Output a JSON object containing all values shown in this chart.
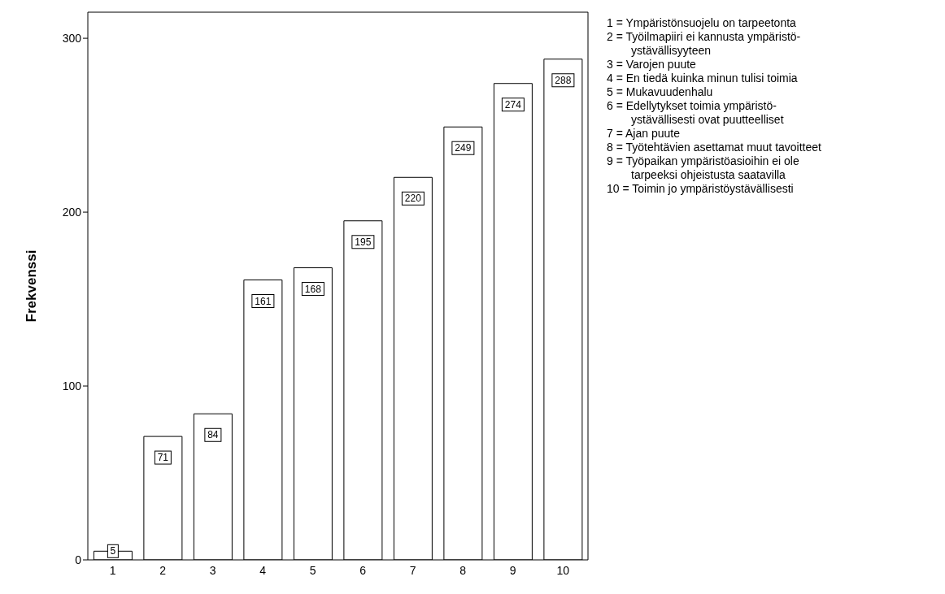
{
  "chart_data": {
    "type": "bar",
    "ylabel": "Frekvenssi",
    "categories": [
      "1",
      "2",
      "3",
      "4",
      "5",
      "6",
      "7",
      "8",
      "9",
      "10"
    ],
    "values": [
      5,
      71,
      84,
      161,
      168,
      195,
      220,
      249,
      274,
      288
    ],
    "color": "#ffffff",
    "ylim": [
      0,
      315
    ],
    "yticks": [
      0,
      100,
      200,
      300
    ],
    "grid": false,
    "data_labels": true,
    "annotations": [
      "1 = Ympäristönsuojelu on tarpeetonta",
      "2 = Työilmapiiri ei kannusta ympäristö-\nystävällisyyteen",
      "3 = Varojen puute",
      "4 = En tiedä kuinka minun tulisi toimia",
      "5 = Mukavuudenhalu",
      "6 = Edellytykset toimia ympäristö-\nystävällisesti ovat puutteelliset",
      "7 = Ajan puute",
      "8 = Työtehtävien asettamat muut tavoitteet",
      "9 = Työpaikan ympäristöasioihin ei ole\ntarpeeksi ohjeistusta saatavilla",
      "10 = Toimin jo ympäristöystävällisesti"
    ]
  }
}
